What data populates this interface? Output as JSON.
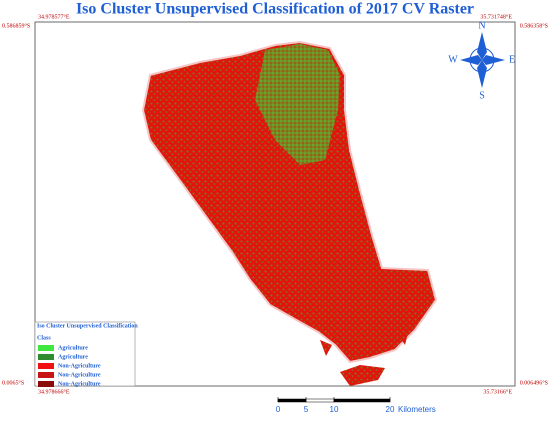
{
  "title": "Iso Cluster Unsupervised Classification of 2017 CV Raster",
  "corners": {
    "top_left": {
      "lon": "34.978577°E",
      "lat": "0.586859°S"
    },
    "top_right": {
      "lon": "35.731748°E",
      "lat": "0.586358°S"
    },
    "bottom_left": {
      "lat": "0.0065°S",
      "lon": "34.978666°E"
    },
    "bottom_right": {
      "lat": "0.006496°S",
      "lon": "35.73166°E"
    }
  },
  "compass": {
    "n": "N",
    "s": "S",
    "e": "E",
    "w": "W"
  },
  "legend": {
    "title": "Iso Cluster Unsupervised Classification",
    "subtitle": "Class",
    "items": [
      {
        "label": "Agriculture",
        "color": "#3ee83e"
      },
      {
        "label": "Agriculture",
        "color": "#2e8b2e"
      },
      {
        "label": "Non-Agriculture",
        "color": "#f01010"
      },
      {
        "label": "Non-Agriculture",
        "color": "#c81414"
      },
      {
        "label": "Non-Agriculture",
        "color": "#8b0a0a"
      }
    ]
  },
  "scale_bar": {
    "ticks": [
      0,
      5,
      10,
      20
    ],
    "unit": "Kilometers"
  }
}
